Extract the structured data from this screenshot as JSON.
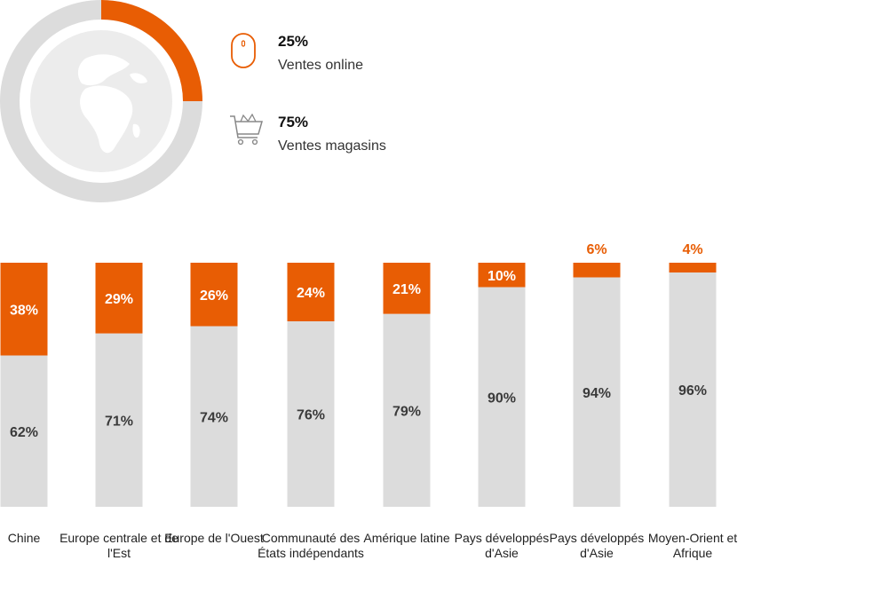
{
  "colors": {
    "online": "#e85d04",
    "store": "#dcdcdc",
    "globe_bg": "#ececec",
    "globe_land": "#ffffff",
    "value_text": "#3a3a3a"
  },
  "summary": {
    "online": {
      "percent": "25%",
      "label": "Ventes online",
      "value": 25,
      "icon": "mouse-icon"
    },
    "store": {
      "percent": "75%",
      "label": "Ventes magasins",
      "value": 75,
      "icon": "shopping-cart-icon"
    },
    "center_icon": "globe-icon"
  },
  "chart_data": {
    "type": "bar",
    "stacked": true,
    "ylim": [
      0,
      100
    ],
    "categories": [
      "Chine",
      "Europe centrale et de l'Est",
      "Europe de l'Ouest",
      "Communauté des États indépendants",
      "Amérique latine",
      "Pays développés d'Asie",
      "Pays développés d'Asie",
      "Moyen-Orient et Afrique"
    ],
    "series": [
      {
        "values": [
          38,
          29,
          26,
          24,
          21,
          10,
          6,
          4
        ],
        "labels": [
          "38%",
          "29%",
          "26%",
          "24%",
          "21%",
          "10%",
          "6%",
          "4%"
        ]
      },
      {
        "values": [
          62,
          71,
          74,
          76,
          79,
          90,
          94,
          96
        ],
        "labels": [
          "62%",
          "71%",
          "74%",
          "76%",
          "79%",
          "90%",
          "94%",
          "96%"
        ]
      }
    ]
  }
}
